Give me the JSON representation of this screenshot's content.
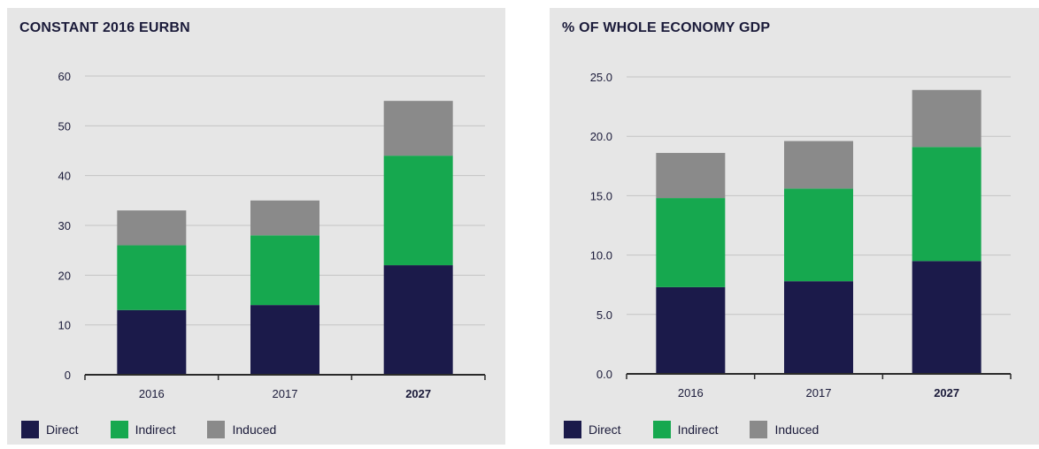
{
  "legend": {
    "direct": "Direct",
    "indirect": "Indirect",
    "induced": "Induced"
  },
  "colors": {
    "Direct": "#1b1a4a",
    "Indirect": "#16a84f",
    "Induced": "#8a8a8a",
    "axis": "#2a2a2a",
    "grid": "#c4c4c4",
    "text": "#1b1b3a"
  },
  "chart_data": [
    {
      "type": "bar",
      "stacked": true,
      "title": "CONSTANT 2016 EURBN",
      "categories": [
        "2016",
        "2017",
        "2027"
      ],
      "series": [
        {
          "name": "Direct",
          "values": [
            13,
            14,
            22
          ]
        },
        {
          "name": "Indirect",
          "values": [
            13,
            14,
            22
          ]
        },
        {
          "name": "Induced",
          "values": [
            7,
            7,
            11
          ]
        }
      ],
      "ylim": [
        0,
        60
      ],
      "yticks": [
        "0",
        "10",
        "20",
        "30",
        "40",
        "50",
        "60"
      ],
      "grid": true,
      "legend_position": "bottom"
    },
    {
      "type": "bar",
      "stacked": true,
      "title": "% OF WHOLE ECONOMY GDP",
      "categories": [
        "2016",
        "2017",
        "2027"
      ],
      "series": [
        {
          "name": "Direct",
          "values": [
            7.3,
            7.8,
            9.5
          ]
        },
        {
          "name": "Indirect",
          "values": [
            7.5,
            7.8,
            9.6
          ]
        },
        {
          "name": "Induced",
          "values": [
            3.8,
            4.0,
            4.8
          ]
        }
      ],
      "ylim": [
        0,
        25
      ],
      "yticks": [
        "0.0",
        "5.0",
        "10.0",
        "15.0",
        "20.0",
        "25.0"
      ],
      "grid": true,
      "legend_position": "bottom"
    }
  ]
}
